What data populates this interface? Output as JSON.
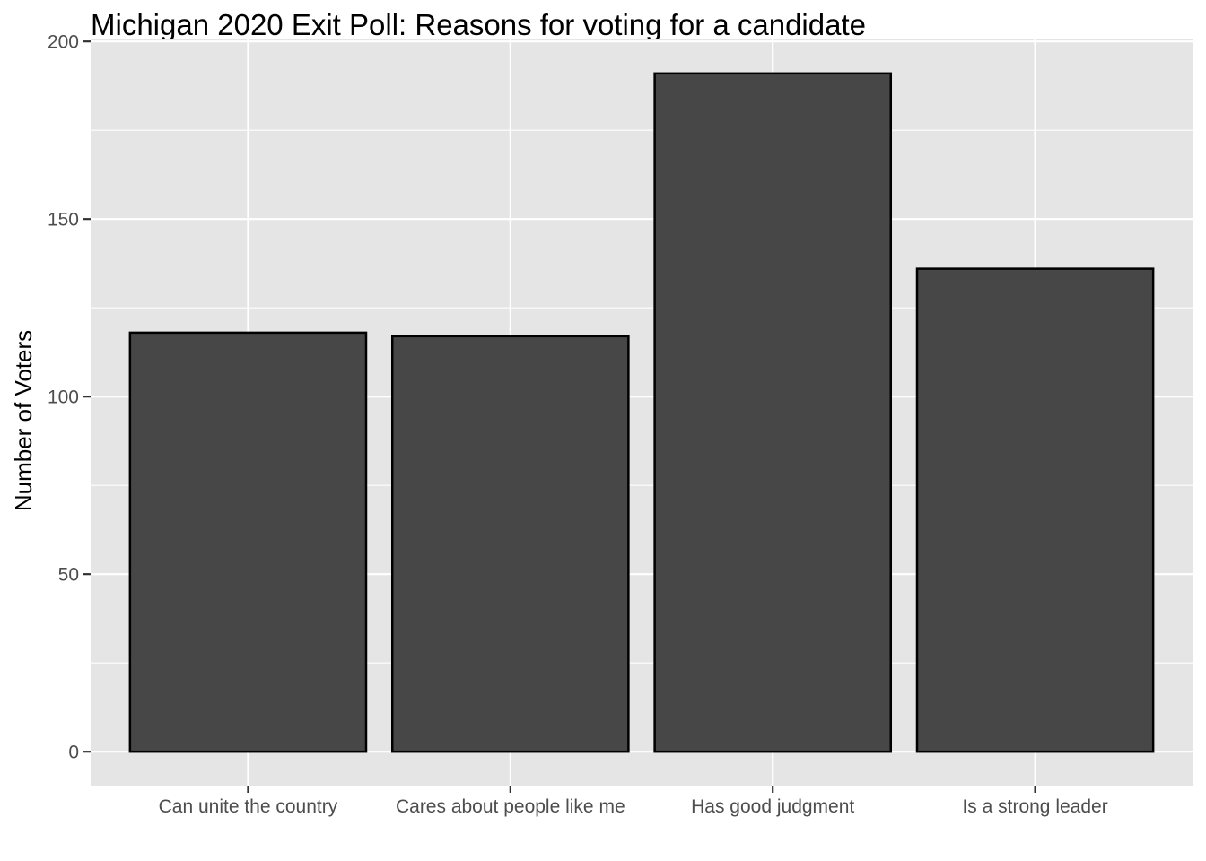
{
  "chart_data": {
    "type": "bar",
    "title": "Michigan 2020 Exit Poll: Reasons for voting for a candidate",
    "xlabel": "",
    "ylabel": "Number of Voters",
    "categories": [
      "Can unite the country",
      "Cares about people like me",
      "Has good judgment",
      "Is a strong leader"
    ],
    "values": [
      118,
      117,
      191,
      136
    ],
    "ylim": [
      -9.55,
      200.55
    ],
    "y_ticks": [
      0,
      50,
      100,
      150,
      200
    ],
    "y_tick_labels": [
      "0",
      "50",
      "100",
      "150",
      "200"
    ],
    "grid": true,
    "legend": "none",
    "colors": {
      "panel_background": "#e5e5e5",
      "grid": "#ffffff",
      "bar_fill": "#474747",
      "bar_outline": "#000000",
      "tick_text": "#4d4d4d"
    }
  }
}
